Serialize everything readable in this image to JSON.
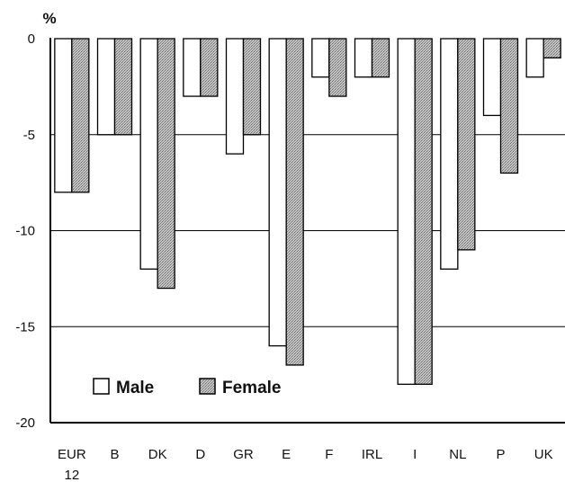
{
  "chart_data": {
    "type": "bar",
    "unit_label": "%",
    "categories": [
      "EUR",
      "B",
      "DK",
      "D",
      "GR",
      "E",
      "F",
      "IRL",
      "I",
      "NL",
      "P",
      "UK"
    ],
    "category_sublabels": [
      "12",
      "",
      "",
      "",
      "",
      "",
      "",
      "",
      "",
      "",
      "",
      ""
    ],
    "series": [
      {
        "name": "Male",
        "values": [
          -8,
          -5,
          -12,
          -3,
          -6,
          -16,
          -2,
          -2,
          -18,
          -12,
          -4,
          -2
        ],
        "color": "#ffffff"
      },
      {
        "name": "Female",
        "values": [
          -8,
          -5,
          -13,
          -3,
          -5,
          -17,
          -3,
          -2,
          -18,
          -11,
          -7,
          -1
        ],
        "color": "#b8b8b8"
      }
    ],
    "yticks": [
      0,
      -5,
      -10,
      -15,
      -20
    ],
    "ylim": [
      -20,
      0
    ],
    "grid": true,
    "legend_position": "bottom-left"
  }
}
